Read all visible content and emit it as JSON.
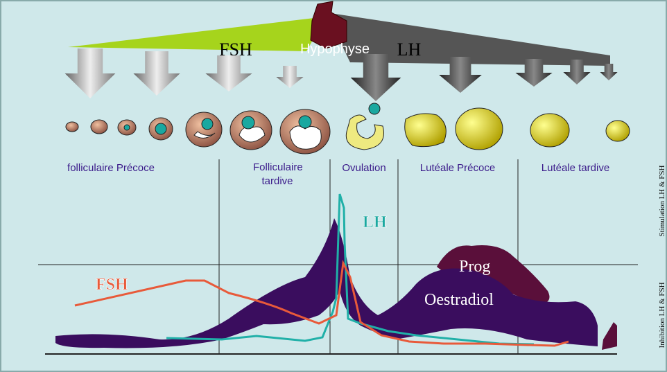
{
  "pituitary": {
    "fsh": "FSH",
    "name": "Hypophyse",
    "lh": "LH"
  },
  "phases": [
    "folliculaire Précoce",
    "Folliculaire tardive",
    "Ovulation",
    "Lutéale Précoce",
    "Lutéale tardive"
  ],
  "curves": {
    "lh": "LH",
    "fsh": "FSH",
    "progesterone": "Prog",
    "estradiol": "Oestradiol"
  },
  "side_labels": {
    "stimulation": "Stimulation LH & FSH",
    "inhibition": "Inhibition LH & FSH"
  }
}
